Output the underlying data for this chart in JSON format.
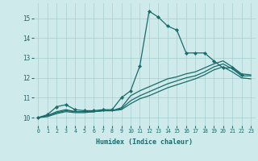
{
  "xlabel": "Humidex (Indice chaleur)",
  "bg_color": "#ceeaea",
  "grid_color": "#a8cece",
  "line_color": "#1a6b6b",
  "xlim": [
    -0.5,
    23.5
  ],
  "ylim": [
    9.6,
    15.75
  ],
  "yticks": [
    10,
    11,
    12,
    13,
    14,
    15
  ],
  "xticks": [
    0,
    1,
    2,
    3,
    4,
    5,
    6,
    7,
    8,
    9,
    10,
    11,
    12,
    13,
    14,
    15,
    16,
    17,
    18,
    19,
    20,
    21,
    22,
    23
  ],
  "series": [
    {
      "x": [
        0,
        1,
        2,
        3,
        4,
        5,
        6,
        7,
        8,
        9,
        10,
        11,
        12,
        13,
        14,
        15,
        16,
        17,
        18,
        19,
        20,
        21,
        22
      ],
      "y": [
        10.0,
        10.15,
        10.55,
        10.65,
        10.4,
        10.35,
        10.35,
        10.4,
        10.4,
        11.0,
        11.35,
        12.6,
        15.35,
        15.05,
        14.6,
        14.4,
        13.25,
        13.25,
        13.25,
        12.85,
        12.5,
        12.5,
        12.15
      ],
      "marker": true
    },
    {
      "x": [
        0,
        1,
        2,
        3,
        4,
        5,
        6,
        7,
        8,
        9,
        10,
        11,
        12,
        13,
        14,
        15,
        16,
        17,
        18,
        19,
        20,
        21,
        22,
        23
      ],
      "y": [
        10.0,
        10.1,
        10.3,
        10.4,
        10.3,
        10.3,
        10.3,
        10.35,
        10.35,
        10.5,
        11.1,
        11.35,
        11.55,
        11.75,
        11.95,
        12.05,
        12.2,
        12.3,
        12.5,
        12.7,
        12.85,
        12.55,
        12.2,
        12.15
      ],
      "marker": false
    },
    {
      "x": [
        0,
        1,
        2,
        3,
        4,
        5,
        6,
        7,
        8,
        9,
        10,
        11,
        12,
        13,
        14,
        15,
        16,
        17,
        18,
        19,
        20,
        21,
        22,
        23
      ],
      "y": [
        10.0,
        10.1,
        10.25,
        10.35,
        10.3,
        10.3,
        10.3,
        10.35,
        10.35,
        10.45,
        10.85,
        11.1,
        11.3,
        11.5,
        11.7,
        11.85,
        12.0,
        12.1,
        12.3,
        12.55,
        12.7,
        12.45,
        12.1,
        12.1
      ],
      "marker": false
    },
    {
      "x": [
        0,
        1,
        2,
        3,
        4,
        5,
        6,
        7,
        8,
        9,
        10,
        11,
        12,
        13,
        14,
        15,
        16,
        17,
        18,
        19,
        20,
        21,
        22,
        23
      ],
      "y": [
        10.0,
        10.05,
        10.2,
        10.3,
        10.25,
        10.25,
        10.3,
        10.35,
        10.35,
        10.4,
        10.7,
        10.95,
        11.1,
        11.3,
        11.5,
        11.65,
        11.8,
        11.95,
        12.15,
        12.4,
        12.55,
        12.3,
        12.0,
        11.95
      ],
      "marker": false
    }
  ]
}
